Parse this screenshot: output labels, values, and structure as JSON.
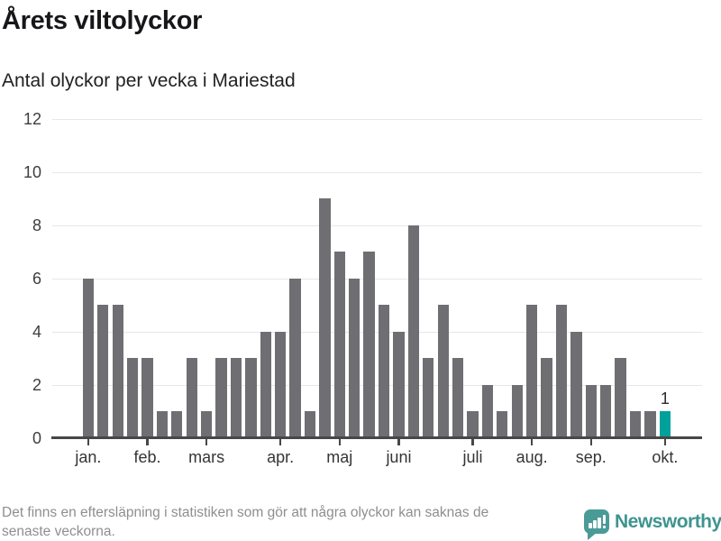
{
  "header": {
    "title": "Årets viltolyckor",
    "subtitle": "Antal olyckor per vecka i Mariestad"
  },
  "chart_data": {
    "type": "bar",
    "title": "Årets viltolyckor",
    "subtitle": "Antal olyckor per vecka i Mariestad",
    "xlabel": "",
    "ylabel": "",
    "x_unit": "vecka",
    "weeks_start": 1,
    "weeks_end": 40,
    "values": [
      6,
      5,
      5,
      3,
      3,
      1,
      1,
      3,
      1,
      3,
      3,
      3,
      4,
      4,
      6,
      1,
      9,
      7,
      6,
      7,
      5,
      4,
      8,
      3,
      5,
      3,
      1,
      2,
      1,
      2,
      5,
      3,
      5,
      4,
      2,
      2,
      3,
      1,
      1,
      1
    ],
    "ylim": [
      0,
      12
    ],
    "yticks": [
      0,
      2,
      4,
      6,
      8,
      10,
      12
    ],
    "grid": "horizontal",
    "legend": "none",
    "month_ticks": [
      {
        "label": "jan.",
        "week": 1
      },
      {
        "label": "feb.",
        "week": 5
      },
      {
        "label": "mars",
        "week": 9
      },
      {
        "label": "apr.",
        "week": 14
      },
      {
        "label": "maj",
        "week": 18
      },
      {
        "label": "juni",
        "week": 22
      },
      {
        "label": "juli",
        "week": 27
      },
      {
        "label": "aug.",
        "week": 31
      },
      {
        "label": "sep.",
        "week": 35
      },
      {
        "label": "okt.",
        "week": 40
      }
    ],
    "bar_color": "#6f6f73",
    "highlight": {
      "index": 39,
      "value": 1,
      "label": "1",
      "color": "#00a19a"
    }
  },
  "footer": {
    "lines": [
      "Det finns en eftersläpning i statistiken som gör att några olyckor kan saknas de",
      "senaste veckorna."
    ]
  },
  "branding": {
    "name": "Newsworthy",
    "icon": "newsworthy-speech-bubble-barchart-icon",
    "icon_color": "#4a9b97",
    "text_color": "#3e948f"
  }
}
